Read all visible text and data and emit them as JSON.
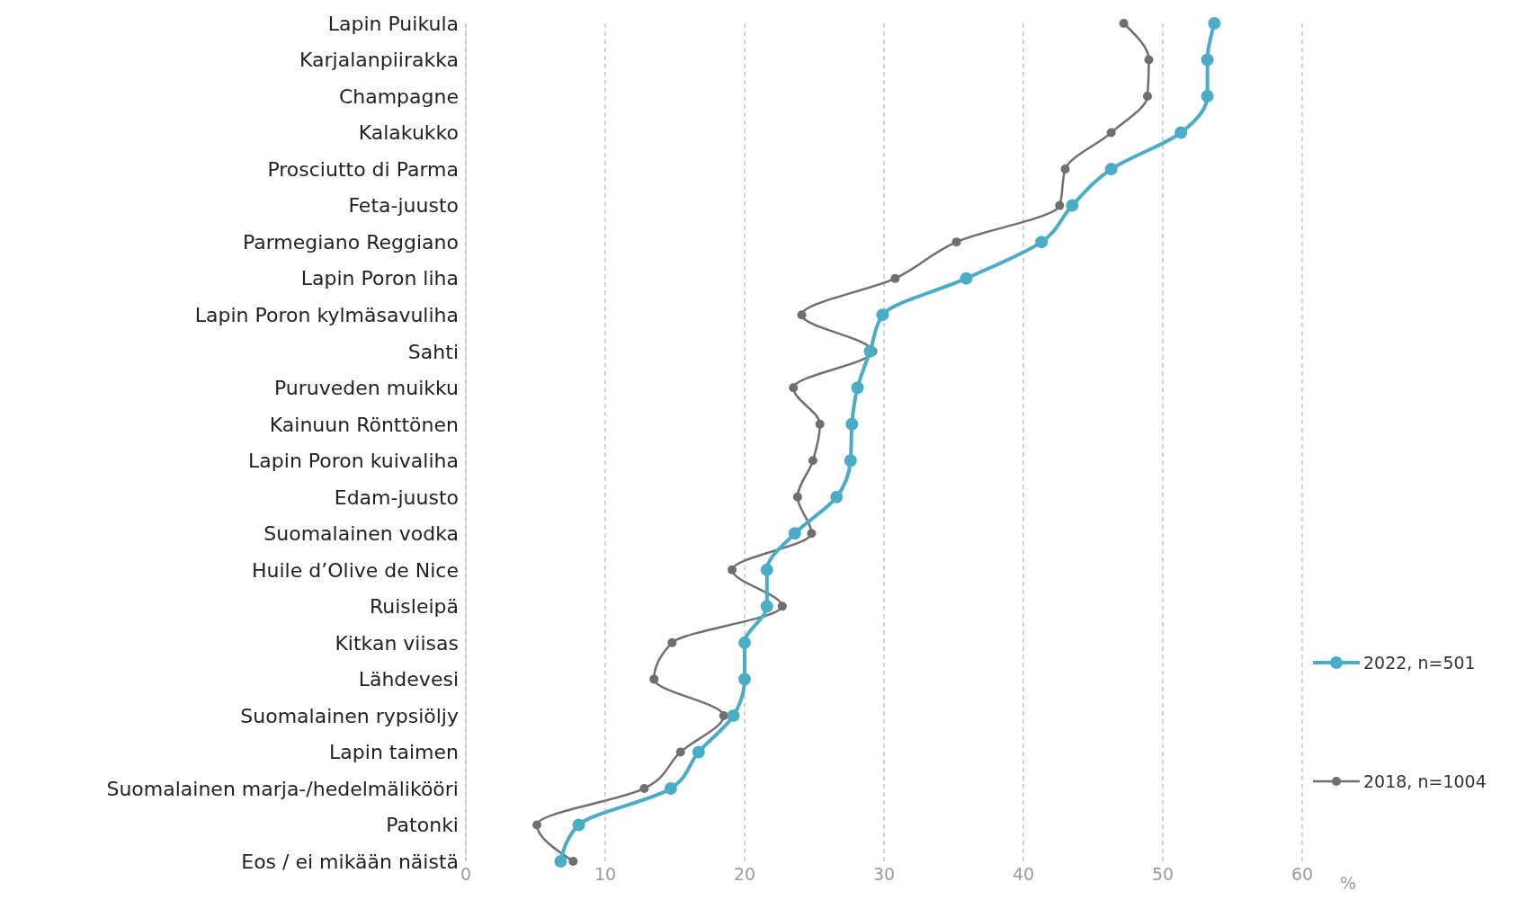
{
  "chart_data": {
    "type": "line",
    "orientation": "horizontal",
    "xlabel": "%",
    "categories": [
      "Lapin Puikula",
      "Karjalanpiirakka",
      "Champagne",
      "Kalakukko",
      "Prosciutto di Parma",
      "Feta-juusto",
      "Parmegiano Reggiano",
      "Lapin Poron liha",
      "Lapin Poron kylmäsavuliha",
      "Sahti",
      "Puruveden muikku",
      "Kainuun Rönttönen",
      "Lapin Poron kuivaliha",
      "Edam-juusto",
      "Suomalainen vodka",
      "Huile d’Olive de Nice",
      "Ruisleipä",
      "Kitkan viisas",
      "Lähdevesi",
      "Suomalainen rypsiöljy",
      "Lapin taimen",
      "Suomalainen marja-/hedelmälikööri",
      "Patonki",
      "Eos  / ei mikään näistä"
    ],
    "series": [
      {
        "name": "2022, n=501",
        "color": "#4bacc6",
        "values": [
          53.7,
          53.2,
          53.2,
          51.3,
          46.3,
          43.5,
          41.3,
          35.9,
          29.9,
          29.0,
          28.1,
          27.7,
          27.6,
          26.6,
          23.6,
          21.6,
          21.6,
          20.0,
          20.0,
          19.2,
          16.7,
          14.7,
          8.1,
          6.8
        ]
      },
      {
        "name": "2018, n=1004",
        "color": "#6f6f6f",
        "values": [
          47.2,
          49.0,
          48.9,
          46.3,
          43.0,
          42.6,
          35.2,
          30.8,
          24.1,
          29.2,
          23.5,
          25.4,
          24.9,
          23.8,
          24.8,
          19.1,
          22.7,
          14.8,
          13.5,
          18.5,
          15.4,
          12.8,
          5.1,
          7.7
        ]
      }
    ],
    "xlim": [
      0,
      60
    ],
    "xticks": [
      0,
      10,
      20,
      30,
      40,
      50,
      60
    ],
    "grid": "x",
    "legend": "right",
    "marker": "circle"
  }
}
